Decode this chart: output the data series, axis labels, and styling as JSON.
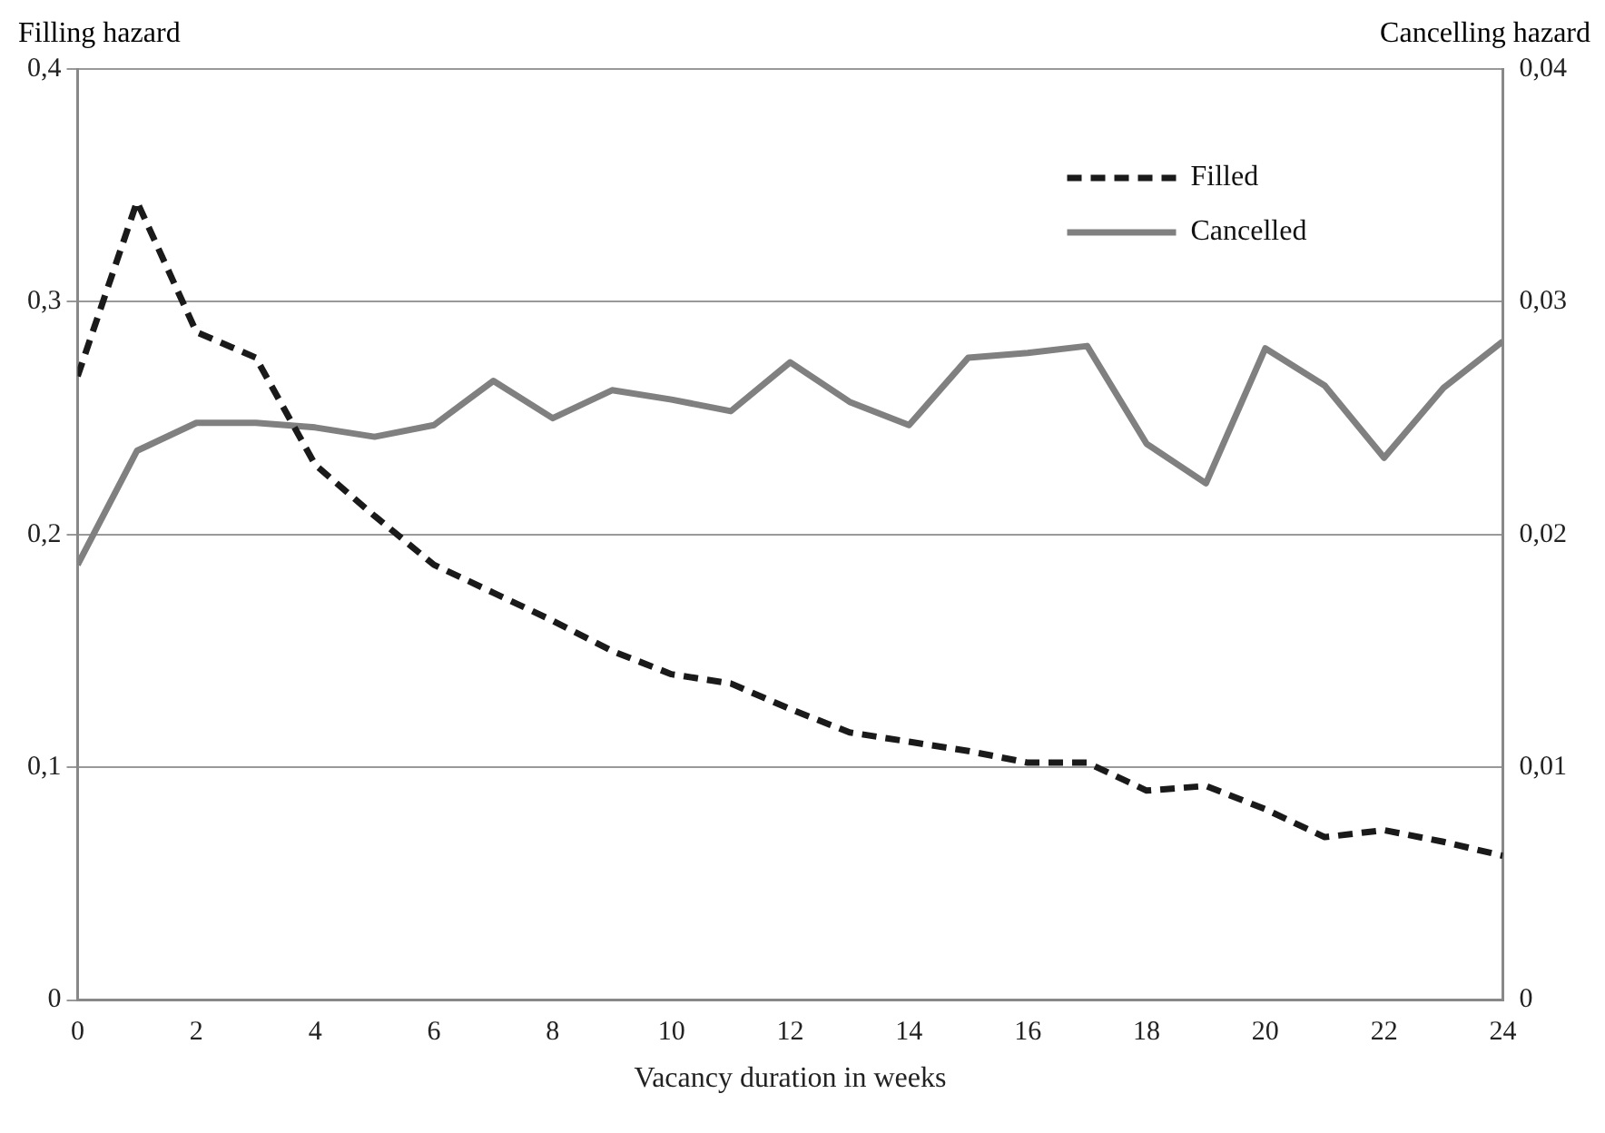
{
  "chart_data": {
    "type": "line",
    "xlabel": "Vacancy duration in weeks",
    "ylabel": "Filling hazard",
    "y2label": "Cancelling hazard",
    "x": [
      0,
      1,
      2,
      3,
      4,
      5,
      6,
      7,
      8,
      9,
      10,
      11,
      12,
      13,
      14,
      15,
      16,
      17,
      18,
      19,
      20,
      21,
      22,
      23,
      24
    ],
    "series": [
      {
        "name": "Filled",
        "color": "#1a1a1a",
        "line_style": "dashed",
        "values": [
          0.268,
          0.343,
          0.287,
          0.276,
          0.23,
          0.208,
          0.187,
          0.175,
          0.163,
          0.15,
          0.14,
          0.136,
          0.125,
          0.115,
          0.111,
          0.107,
          0.102,
          0.102,
          0.09,
          0.092,
          0.082,
          0.07,
          0.073,
          0.068,
          0.062
        ]
      },
      {
        "name": "Cancelled",
        "color": "#808080",
        "line_style": "solid",
        "axis": "y2",
        "values": [
          0.0187,
          0.0236,
          0.0248,
          0.0248,
          0.0246,
          0.0242,
          0.0247,
          0.0266,
          0.025,
          0.0262,
          0.0258,
          0.0253,
          0.0274,
          0.0257,
          0.0247,
          0.0276,
          0.0278,
          0.0281,
          0.0239,
          0.0222,
          0.028,
          0.0264,
          0.0233,
          0.0263,
          0.0283
        ]
      }
    ],
    "xlim": [
      0,
      24
    ],
    "xticks": [
      0,
      2,
      4,
      6,
      8,
      10,
      12,
      14,
      16,
      18,
      20,
      22,
      24
    ],
    "ylim": [
      0,
      0.4
    ],
    "yticks": [
      0,
      {
        "value": 0.1,
        "label": "0,1"
      },
      {
        "value": 0.2,
        "label": "0,2"
      },
      {
        "value": 0.3,
        "label": "0,3"
      },
      {
        "value": 0.4,
        "label": "0,4"
      }
    ],
    "y2lim": [
      0,
      0.04
    ],
    "y2ticks": [
      0,
      {
        "value": 0.01,
        "label": "0,01"
      },
      {
        "value": 0.02,
        "label": "0,02"
      },
      {
        "value": 0.03,
        "label": "0,03"
      },
      {
        "value": 0.04,
        "label": "0,04"
      }
    ],
    "grid": "y",
    "legend": "top right",
    "marker": "none"
  }
}
